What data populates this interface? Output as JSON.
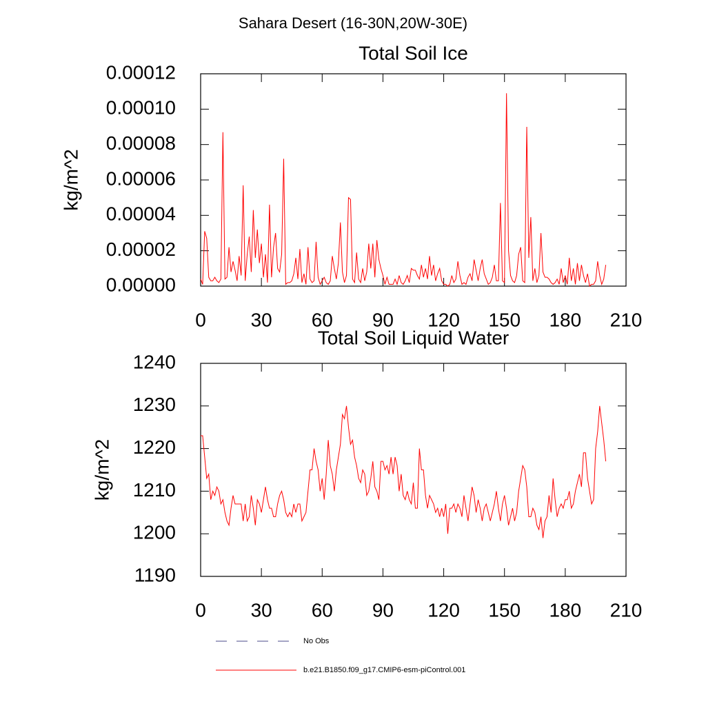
{
  "title": "Sahara Desert (16-30N,20W-30E)",
  "legend": [
    {
      "name": "No Obs",
      "color": "#4a4a8a",
      "dash": "dashed"
    },
    {
      "name": "b.e21.B1850.f09_g17.CMIP6-esm-piControl.001",
      "color": "#ff0000"
    }
  ],
  "chart_data": [
    {
      "type": "line",
      "title": "Total Soil Ice",
      "y_label": "kg/m^2",
      "xlim": [
        0,
        210
      ],
      "xticks": [
        0,
        30,
        60,
        90,
        120,
        150,
        180,
        210
      ],
      "ylim": [
        0,
        0.00012
      ],
      "yticks": [
        {
          "value": 0,
          "label": "0.00000"
        },
        {
          "value": 2e-05,
          "label": "0.00002"
        },
        {
          "value": 4e-05,
          "label": "0.00004"
        },
        {
          "value": 6e-05,
          "label": "0.00006"
        },
        {
          "value": 8e-05,
          "label": "0.00008"
        },
        {
          "value": 0.0001,
          "label": "0.00010"
        },
        {
          "value": 0.00012,
          "label": "0.00012"
        }
      ],
      "x": [
        0,
        1,
        2,
        3,
        4,
        5,
        6,
        7,
        8,
        9,
        10,
        11,
        12,
        13,
        14,
        15,
        16,
        17,
        18,
        19,
        20,
        21,
        22,
        23,
        24,
        25,
        26,
        27,
        28,
        29,
        30,
        31,
        32,
        33,
        34,
        35,
        36,
        37,
        38,
        39,
        40,
        41,
        42,
        43,
        44,
        45,
        46,
        47,
        48,
        49,
        50,
        51,
        52,
        53,
        54,
        55,
        56,
        57,
        58,
        59,
        60,
        61,
        62,
        63,
        64,
        65,
        66,
        67,
        68,
        69,
        70,
        71,
        72,
        73,
        74,
        75,
        76,
        77,
        78,
        79,
        80,
        81,
        82,
        83,
        84,
        85,
        86,
        87,
        88,
        89,
        90,
        91,
        92,
        93,
        94,
        95,
        96,
        97,
        98,
        99,
        100,
        101,
        102,
        103,
        104,
        105,
        106,
        107,
        108,
        109,
        110,
        111,
        112,
        113,
        114,
        115,
        116,
        117,
        118,
        119,
        120,
        121,
        122,
        123,
        124,
        125,
        126,
        127,
        128,
        129,
        130,
        131,
        132,
        133,
        134,
        135,
        136,
        137,
        138,
        139,
        140,
        141,
        142,
        143,
        144,
        145,
        146,
        147,
        148,
        149,
        150,
        151,
        152,
        153,
        154,
        155,
        156,
        157,
        158,
        159,
        160,
        161,
        162,
        163,
        164,
        165,
        166,
        167,
        168,
        169,
        170,
        171,
        172,
        173,
        174,
        175,
        176,
        177,
        178,
        179,
        180,
        181,
        182,
        183,
        184,
        185,
        186,
        187,
        188,
        189,
        190,
        191,
        192,
        193,
        194,
        195,
        196,
        197,
        198,
        199,
        200
      ],
      "series": [
        {
          "color": "#ff0000",
          "values": [
            4e-06,
            1e-06,
            3.1e-05,
            2.7e-05,
            5e-06,
            3e-06,
            3e-06,
            5e-06,
            3e-06,
            2e-06,
            4e-06,
            8.7e-05,
            4e-06,
            5e-06,
            2.2e-05,
            8e-06,
            1.4e-05,
            9e-06,
            3e-06,
            1.7e-05,
            6e-06,
            5.7e-05,
            3e-06,
            1.8e-05,
            2.8e-05,
            8e-06,
            4.3e-05,
            1.6e-05,
            3.2e-05,
            1.3e-05,
            2.4e-05,
            5e-06,
            1.8e-05,
            2e-06,
            4.6e-05,
            5e-06,
            2.2e-05,
            3e-05,
            1e-05,
            8e-06,
            1.8e-05,
            7.2e-05,
            1e-06,
            2e-06,
            2e-06,
            3e-06,
            7e-06,
            1.6e-05,
            4e-06,
            2.1e-05,
            2e-06,
            7e-06,
            1e-06,
            2.2e-05,
            4e-06,
            2e-06,
            3e-06,
            2.5e-05,
            5e-06,
            1e-06,
            3e-06,
            5e-06,
            2e-06,
            1e-06,
            3e-06,
            1.7e-05,
            1e-05,
            4e-06,
            1.3e-05,
            3.6e-05,
            8e-06,
            2e-06,
            6e-06,
            5e-05,
            4.9e-05,
            4e-06,
            2e-06,
            1.9e-05,
            4e-06,
            2e-06,
            1e-05,
            3e-06,
            8e-06,
            2.4e-05,
            1e-05,
            2.4e-05,
            5e-06,
            2.6e-05,
            1.5e-05,
            1e-05,
            6e-06,
            1e-06,
            5e-06,
            1e-06,
            1e-06,
            1e-06,
            4e-06,
            1e-06,
            6e-06,
            2e-06,
            1e-06,
            3e-06,
            6e-06,
            2e-06,
            1e-05,
            9e-06,
            9e-06,
            6e-06,
            4e-06,
            1.2e-05,
            5e-06,
            1e-05,
            4e-06,
            1.7e-05,
            6e-06,
            1.2e-05,
            3e-06,
            7e-06,
            1e-05,
            3e-06,
            1e-06,
            1e-06,
            0,
            1e-06,
            6e-06,
            2e-06,
            4e-06,
            1.4e-05,
            6e-06,
            1e-06,
            2e-06,
            1e-06,
            5e-06,
            7e-06,
            3e-06,
            1.5e-05,
            9e-06,
            3e-06,
            1e-05,
            1.5e-05,
            7e-06,
            4e-06,
            1e-06,
            2e-06,
            5e-06,
            1.2e-05,
            3e-06,
            3e-06,
            4.7e-05,
            3e-06,
            2e-06,
            0.000109,
            2e-05,
            6e-06,
            3e-06,
            2e-06,
            6e-06,
            1.8e-05,
            2.2e-05,
            3e-06,
            2e-06,
            9e-05,
            1.6e-05,
            3.9e-05,
            3e-06,
            1e-05,
            2e-06,
            6e-06,
            3e-05,
            8e-06,
            5e-06,
            5e-06,
            4e-06,
            2e-06,
            1e-06,
            2e-06,
            4e-06,
            1e-06,
            1e-05,
            2e-06,
            6e-06,
            1e-06,
            1.6e-05,
            3e-06,
            1e-05,
            1e-06,
            1.3e-05,
            3e-06,
            1.2e-05,
            6e-06,
            2e-06,
            7e-06,
            0,
            1e-06,
            1e-06,
            3e-06,
            1.4e-05,
            6e-06,
            1e-06,
            4e-06,
            1.2e-05
          ]
        }
      ]
    },
    {
      "type": "line",
      "title": "Total Soil Liquid Water",
      "y_label": "kg/m^2",
      "xlim": [
        0,
        210
      ],
      "xticks": [
        0,
        30,
        60,
        90,
        120,
        150,
        180,
        210
      ],
      "ylim": [
        1190,
        1240
      ],
      "yticks": [
        1190,
        1200,
        1210,
        1220,
        1230,
        1240
      ],
      "x": [
        0,
        1,
        2,
        3,
        4,
        5,
        6,
        7,
        8,
        9,
        10,
        11,
        12,
        13,
        14,
        15,
        16,
        17,
        18,
        19,
        20,
        21,
        22,
        23,
        24,
        25,
        26,
        27,
        28,
        29,
        30,
        31,
        32,
        33,
        34,
        35,
        36,
        37,
        38,
        39,
        40,
        41,
        42,
        43,
        44,
        45,
        46,
        47,
        48,
        49,
        50,
        51,
        52,
        53,
        54,
        55,
        56,
        57,
        58,
        59,
        60,
        61,
        62,
        63,
        64,
        65,
        66,
        67,
        68,
        69,
        70,
        71,
        72,
        73,
        74,
        75,
        76,
        77,
        78,
        79,
        80,
        81,
        82,
        83,
        84,
        85,
        86,
        87,
        88,
        89,
        90,
        91,
        92,
        93,
        94,
        95,
        96,
        97,
        98,
        99,
        100,
        101,
        102,
        103,
        104,
        105,
        106,
        107,
        108,
        109,
        110,
        111,
        112,
        113,
        114,
        115,
        116,
        117,
        118,
        119,
        120,
        121,
        122,
        123,
        124,
        125,
        126,
        127,
        128,
        129,
        130,
        131,
        132,
        133,
        134,
        135,
        136,
        137,
        138,
        139,
        140,
        141,
        142,
        143,
        144,
        145,
        146,
        147,
        148,
        149,
        150,
        151,
        152,
        153,
        154,
        155,
        156,
        157,
        158,
        159,
        160,
        161,
        162,
        163,
        164,
        165,
        166,
        167,
        168,
        169,
        170,
        171,
        172,
        173,
        174,
        175,
        176,
        177,
        178,
        179,
        180,
        181,
        182,
        183,
        184,
        185,
        186,
        187,
        188,
        189,
        190,
        191,
        192,
        193,
        194,
        195,
        196,
        197,
        198,
        199,
        200
      ],
      "series": [
        {
          "color": "#ff0000",
          "values": [
            1223,
            1223,
            1218,
            1213,
            1214,
            1208,
            1210,
            1209,
            1211,
            1210,
            1207,
            1208,
            1205,
            1203,
            1202,
            1206,
            1209,
            1207,
            1207,
            1207,
            1207,
            1203,
            1207,
            1203,
            1204,
            1209,
            1206,
            1202,
            1208,
            1207,
            1205,
            1208,
            1211,
            1208,
            1206,
            1206,
            1204,
            1204,
            1207,
            1209,
            1210,
            1208,
            1205,
            1204,
            1205,
            1204,
            1207,
            1205,
            1207,
            1207,
            1203,
            1204,
            1205,
            1210,
            1215,
            1215,
            1220,
            1217,
            1215,
            1210,
            1213,
            1208,
            1214,
            1222,
            1216,
            1214,
            1210,
            1215,
            1218,
            1221,
            1228,
            1227,
            1230,
            1225,
            1221,
            1222,
            1218,
            1216,
            1213,
            1212,
            1215,
            1214,
            1209,
            1210,
            1213,
            1217,
            1211,
            1210,
            1208,
            1217,
            1217,
            1215,
            1216,
            1214,
            1218,
            1214,
            1218,
            1216,
            1210,
            1214,
            1209,
            1208,
            1210,
            1208,
            1207,
            1212,
            1206,
            1206,
            1220,
            1215,
            1215,
            1209,
            1206,
            1209,
            1208,
            1207,
            1205,
            1206,
            1204,
            1206,
            1204,
            1207,
            1200,
            1206,
            1206,
            1207,
            1205,
            1207,
            1206,
            1204,
            1209,
            1206,
            1203,
            1207,
            1211,
            1209,
            1205,
            1208,
            1206,
            1203,
            1206,
            1207,
            1205,
            1203,
            1205,
            1207,
            1210,
            1206,
            1203,
            1207,
            1209,
            1206,
            1202,
            1204,
            1206,
            1203,
            1205,
            1210,
            1213,
            1216,
            1215,
            1211,
            1204,
            1204,
            1206,
            1205,
            1202,
            1201,
            1204,
            1199,
            1203,
            1204,
            1209,
            1205,
            1213,
            1208,
            1204,
            1206,
            1207,
            1206,
            1208,
            1208,
            1210,
            1206,
            1207,
            1210,
            1212,
            1214,
            1211,
            1219,
            1219,
            1213,
            1210,
            1207,
            1208,
            1220,
            1224,
            1230,
            1226,
            1222,
            1217
          ]
        }
      ]
    }
  ]
}
